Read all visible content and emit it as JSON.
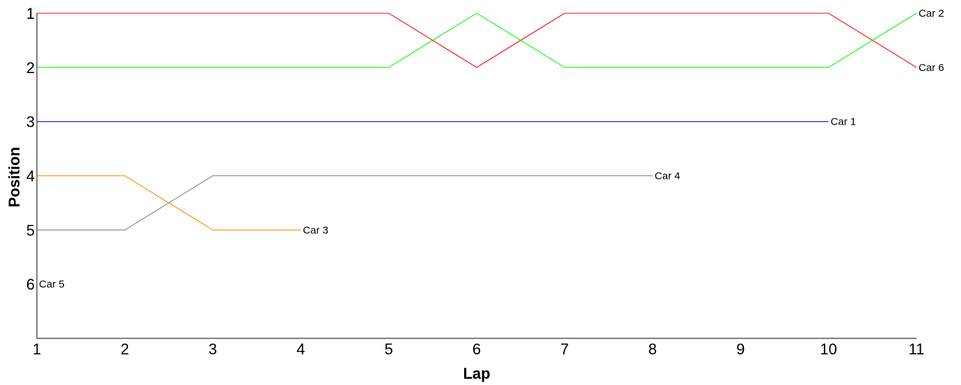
{
  "chart_data": {
    "type": "line",
    "xlabel": "Lap",
    "ylabel": "Position",
    "xlim": [
      1,
      11
    ],
    "ylim": [
      1,
      7
    ],
    "y_inverted": true,
    "x_ticks": [
      1,
      2,
      3,
      4,
      5,
      6,
      7,
      8,
      9,
      10,
      11
    ],
    "y_ticks": [
      1,
      2,
      3,
      4,
      5,
      6
    ],
    "grid": false,
    "legend": "none",
    "series": [
      {
        "name": "Car 6",
        "color": "#ff0000",
        "x": [
          1,
          2,
          3,
          4,
          5,
          6,
          7,
          8,
          9,
          10,
          11
        ],
        "y": [
          1,
          1,
          1,
          1,
          1,
          2,
          1,
          1,
          1,
          1,
          2
        ]
      },
      {
        "name": "Car 2",
        "color": "#00ff00",
        "x": [
          1,
          2,
          3,
          4,
          5,
          6,
          7,
          8,
          9,
          10,
          11
        ],
        "y": [
          2,
          2,
          2,
          2,
          2,
          1,
          2,
          2,
          2,
          2,
          1
        ]
      },
      {
        "name": "Car 1",
        "color": "#0000ff",
        "x": [
          1,
          2,
          3,
          4,
          5,
          6,
          7,
          8,
          9,
          10
        ],
        "y": [
          3,
          3,
          3,
          3,
          3,
          3,
          3,
          3,
          3,
          3
        ]
      },
      {
        "name": "Car 4",
        "color": "#808080",
        "x": [
          1,
          2,
          3,
          4,
          5,
          6,
          7,
          8
        ],
        "y": [
          5,
          5,
          4,
          4,
          4,
          4,
          4,
          4
        ]
      },
      {
        "name": "Car 3",
        "color": "#ff8c00",
        "x": [
          1,
          2,
          3,
          4
        ],
        "y": [
          4,
          4,
          5,
          5
        ]
      },
      {
        "name": "Car 5",
        "color": "#000000",
        "x": [
          1
        ],
        "y": [
          6
        ]
      }
    ]
  }
}
